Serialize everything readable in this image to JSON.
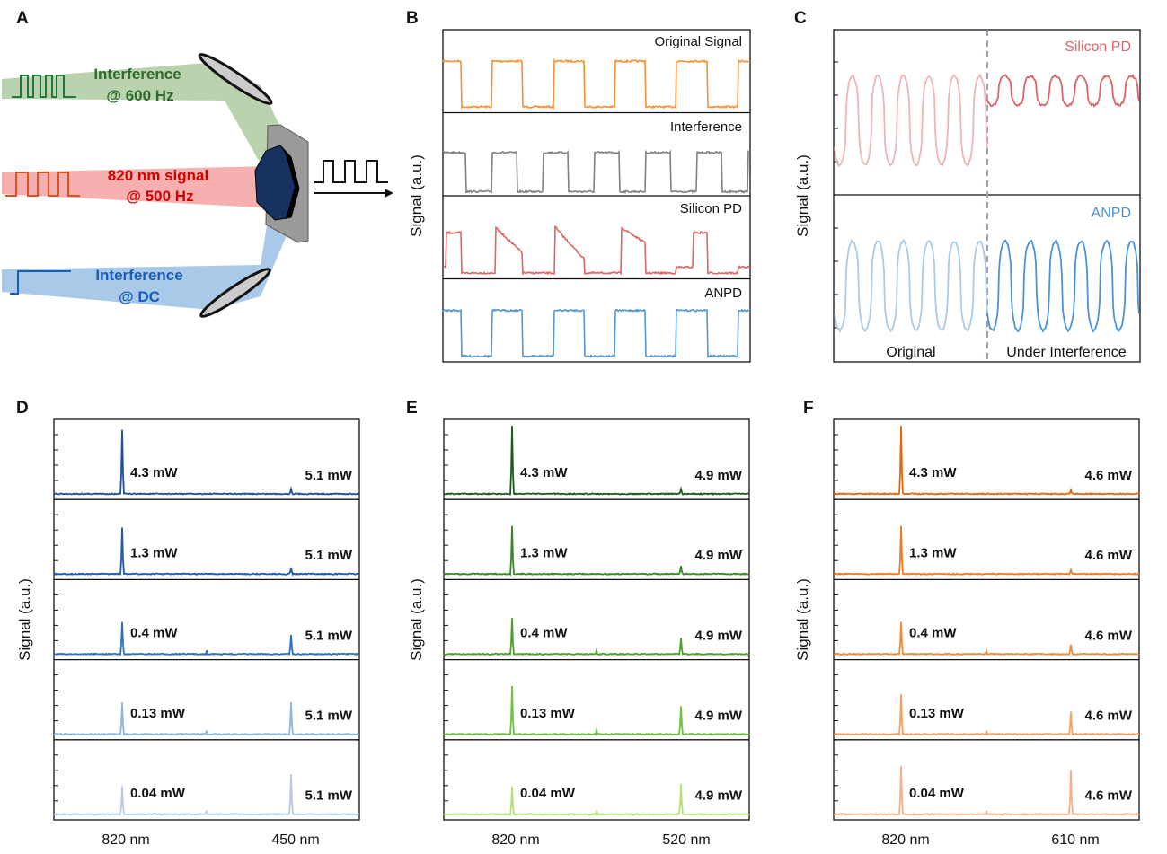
{
  "panels": {
    "A": "A",
    "B": "B",
    "C": "C",
    "D": "D",
    "E": "E",
    "F": "F"
  },
  "ylabel": "Signal (a.u.)",
  "schematic": {
    "green_label": [
      "Interference",
      "@ 600 Hz"
    ],
    "red_label": [
      "820 nm signal",
      "@ 500 Hz"
    ],
    "blue_label": [
      "Interference",
      "@ DC"
    ],
    "colors": {
      "green": "#2e6b2e",
      "red": "#d40000",
      "blue": "#1a5db5"
    }
  },
  "chart_data": [
    {
      "panel": "B",
      "type": "line",
      "ylabel": "Signal (a.u.)",
      "series": [
        {
          "name": "Original Signal",
          "color": "#f39237",
          "cycles": 5,
          "shape": "square"
        },
        {
          "name": "Interference",
          "color": "#808080",
          "cycles": 6,
          "shape": "square"
        },
        {
          "name": "Silicon PD",
          "color": "#de6466",
          "cycles": 5,
          "shape": "distorted"
        },
        {
          "name": "ANPD",
          "color": "#4f97d6",
          "cycles": 5,
          "shape": "square"
        }
      ]
    },
    {
      "panel": "C",
      "type": "line",
      "ylabel": "Signal (a.u.)",
      "xlabels": [
        "Original",
        "Under Interference"
      ],
      "series": [
        {
          "name": "Silicon PD",
          "color": "#de6466",
          "faded": "#efb4b5",
          "cycles_each": 6,
          "amplitude_original": 1.0,
          "amplitude_interference": 0.33
        },
        {
          "name": "ANPD",
          "color": "#4a93d6",
          "faded": "#a9cbe8",
          "cycles_each": 6,
          "amplitude_original": 1.0,
          "amplitude_interference": 1.0
        }
      ]
    },
    {
      "panel": "D",
      "type": "line",
      "ylabel": "Signal (a.u.)",
      "xticks": [
        "820 nm",
        "450 nm"
      ],
      "series": [
        {
          "signal_power": "4.3 mW",
          "interference_power": "5.1 mW",
          "color": "#1f4f9c",
          "peak_820": 0.8,
          "peak_other": 0.06
        },
        {
          "signal_power": "1.3 mW",
          "interference_power": "5.1 mW",
          "color": "#2158a8",
          "peak_820": 0.58,
          "peak_other": 0.08
        },
        {
          "signal_power": "0.4 mW",
          "interference_power": "5.1 mW",
          "color": "#2f6fbd",
          "peak_820": 0.4,
          "peak_other": 0.24
        },
        {
          "signal_power": "0.13 mW",
          "interference_power": "5.1 mW",
          "color": "#8db6e0",
          "peak_820": 0.4,
          "peak_other": 0.4
        },
        {
          "signal_power": "0.04 mW",
          "interference_power": "5.1 mW",
          "color": "#b3cbe5",
          "peak_820": 0.35,
          "peak_other": 0.5
        }
      ]
    },
    {
      "panel": "E",
      "type": "line",
      "ylabel": "Signal (a.u.)",
      "xticks": [
        "820 nm",
        "520 nm"
      ],
      "series": [
        {
          "signal_power": "4.3 mW",
          "interference_power": "4.9 mW",
          "color": "#1e5a1e",
          "peak_820": 0.85,
          "peak_other": 0.06
        },
        {
          "signal_power": "1.3 mW",
          "interference_power": "4.9 mW",
          "color": "#3d8528",
          "peak_820": 0.6,
          "peak_other": 0.1
        },
        {
          "signal_power": "0.4 mW",
          "interference_power": "4.9 mW",
          "color": "#4f9e2a",
          "peak_820": 0.45,
          "peak_other": 0.2
        },
        {
          "signal_power": "0.13 mW",
          "interference_power": "4.9 mW",
          "color": "#6cc23a",
          "peak_820": 0.6,
          "peak_other": 0.35
        },
        {
          "signal_power": "0.04 mW",
          "interference_power": "4.9 mW",
          "color": "#b5df78",
          "peak_820": 0.35,
          "peak_other": 0.38
        }
      ]
    },
    {
      "panel": "F",
      "type": "line",
      "ylabel": "Signal (a.u.)",
      "xticks": [
        "820 nm",
        "610 nm"
      ],
      "series": [
        {
          "signal_power": "4.3 mW",
          "interference_power": "4.6 mW",
          "color": "#e0680f",
          "peak_820": 0.85,
          "peak_other": 0.05
        },
        {
          "signal_power": "1.3 mW",
          "interference_power": "4.6 mW",
          "color": "#ee7a25",
          "peak_820": 0.6,
          "peak_other": 0.05
        },
        {
          "signal_power": "0.4 mW",
          "interference_power": "4.6 mW",
          "color": "#f08a3a",
          "peak_820": 0.4,
          "peak_other": 0.12
        },
        {
          "signal_power": "0.13 mW",
          "interference_power": "4.6 mW",
          "color": "#f3a060",
          "peak_820": 0.5,
          "peak_other": 0.28
        },
        {
          "signal_power": "0.04 mW",
          "interference_power": "4.6 mW",
          "color": "#f4b088",
          "peak_820": 0.6,
          "peak_other": 0.55
        }
      ]
    }
  ]
}
